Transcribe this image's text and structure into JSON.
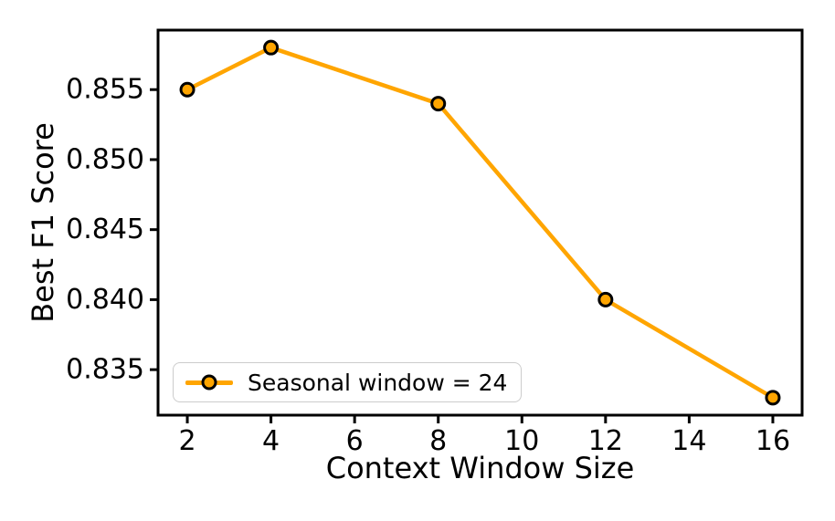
{
  "figure": {
    "background": "#ffffff"
  },
  "chart_data": {
    "type": "line",
    "title": "",
    "xlabel": "Context Window Size",
    "ylabel": "Best F1 Score",
    "x": [
      2,
      4,
      8,
      12,
      16
    ],
    "series": [
      {
        "name": "Seasonal window = 24",
        "values": [
          0.855,
          0.858,
          0.854,
          0.84,
          0.833
        ],
        "color": "#FFA500",
        "marker": "circle",
        "marker_edge_color": "#000000"
      }
    ],
    "xlim": [
      1.3,
      16.7
    ],
    "ylim": [
      0.83175,
      0.85925
    ],
    "x_ticks": [
      2,
      4,
      6,
      8,
      10,
      12,
      14,
      16
    ],
    "x_tick_labels": [
      "2",
      "4",
      "6",
      "8",
      "10",
      "12",
      "14",
      "16"
    ],
    "y_ticks": [
      0.835,
      0.84,
      0.845,
      0.85,
      0.855
    ],
    "y_tick_labels": [
      "0.835",
      "0.840",
      "0.845",
      "0.850",
      "0.855"
    ],
    "grid": false,
    "legend_position": "lower left",
    "axis_color": "#000000"
  }
}
